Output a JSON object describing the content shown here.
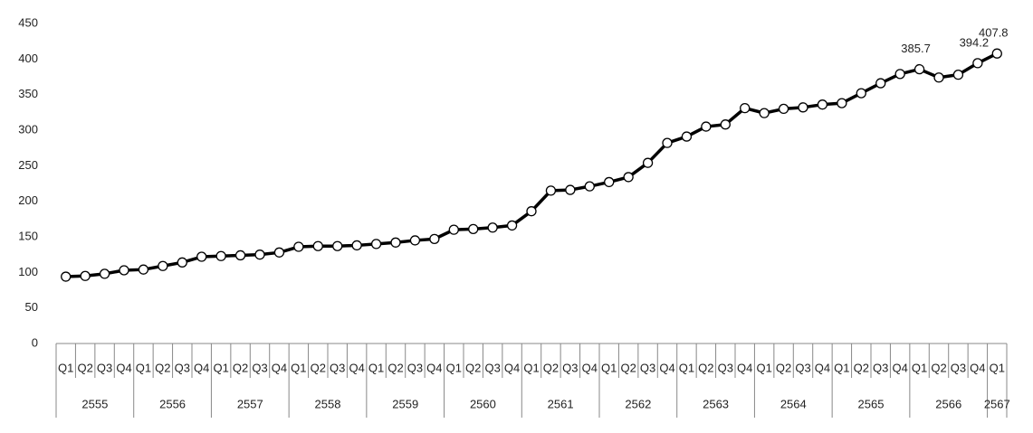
{
  "chart_data": {
    "type": "line",
    "categories": [
      "Q1",
      "Q2",
      "Q3",
      "Q4",
      "Q1",
      "Q2",
      "Q3",
      "Q4",
      "Q1",
      "Q2",
      "Q3",
      "Q4",
      "Q1",
      "Q2",
      "Q3",
      "Q4",
      "Q1",
      "Q2",
      "Q3",
      "Q4",
      "Q1",
      "Q2",
      "Q3",
      "Q4",
      "Q1",
      "Q2",
      "Q3",
      "Q4",
      "Q1",
      "Q2",
      "Q3",
      "Q4",
      "Q1",
      "Q2",
      "Q3",
      "Q4",
      "Q1",
      "Q2",
      "Q3",
      "Q4",
      "Q1",
      "Q2",
      "Q3",
      "Q4",
      "Q1",
      "Q2",
      "Q3",
      "Q4",
      "Q1"
    ],
    "years": [
      "2555",
      "2556",
      "2557",
      "2558",
      "2559",
      "2560",
      "2561",
      "2562",
      "2563",
      "2564",
      "2565",
      "2566",
      "2567"
    ],
    "series": [
      {
        "color": "#000000",
        "values": [
          94,
          95,
          98,
          103,
          104,
          109,
          114,
          122,
          123,
          124,
          125,
          128,
          136,
          137,
          137,
          138,
          140,
          142,
          145,
          147,
          160,
          161,
          163,
          166,
          186,
          215,
          216,
          221,
          227,
          234,
          254,
          282,
          291,
          305,
          308,
          331,
          324,
          330,
          332,
          336,
          338,
          352,
          366,
          379,
          385.7,
          374,
          378,
          394.2,
          407.8
        ],
        "value_labels": [
          null,
          null,
          null,
          null,
          null,
          null,
          null,
          null,
          null,
          null,
          null,
          null,
          null,
          null,
          null,
          null,
          null,
          null,
          null,
          null,
          null,
          null,
          null,
          null,
          null,
          null,
          null,
          null,
          null,
          null,
          null,
          null,
          null,
          null,
          null,
          null,
          null,
          null,
          null,
          null,
          null,
          null,
          null,
          null,
          "385.7",
          null,
          null,
          "394.2",
          "407.8"
        ]
      }
    ],
    "ylim": [
      0,
      450
    ],
    "yticks": [
      0,
      50,
      100,
      150,
      200,
      250,
      300,
      350,
      400,
      450
    ],
    "grid": false
  }
}
